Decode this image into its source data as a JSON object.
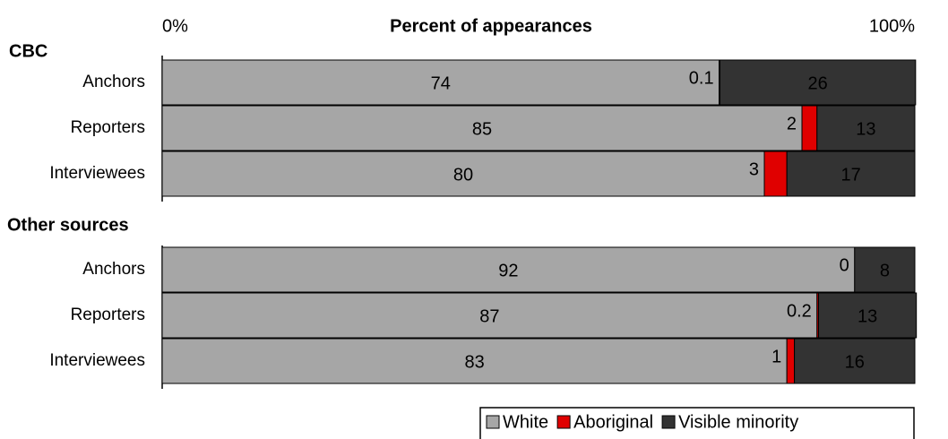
{
  "title": "Percent of  appearances",
  "xlim": [
    0,
    100
  ],
  "xticks": [
    {
      "value": 0,
      "label": "0%"
    },
    {
      "value": 100,
      "label": "100%"
    }
  ],
  "legend": [
    {
      "name": "White",
      "color": "#a6a6a6"
    },
    {
      "name": "Aboriginal",
      "color": "#e00000"
    },
    {
      "name": "Visible minority",
      "color": "#333333"
    }
  ],
  "chart_data": [
    {
      "type": "bar",
      "title": "CBC",
      "categories": [
        "Anchors",
        "Reporters",
        "Interviewees"
      ],
      "series": [
        {
          "values": [
            74,
            85,
            80
          ]
        },
        {
          "values": [
            0.1,
            2,
            3
          ]
        },
        {
          "values": [
            26,
            13,
            17
          ]
        }
      ]
    },
    {
      "type": "bar",
      "title": "Other sources",
      "categories": [
        "Anchors",
        "Reporters",
        "Interviewees"
      ],
      "series": [
        {
          "values": [
            92,
            87,
            83
          ]
        },
        {
          "values": [
            0,
            0.2,
            1
          ]
        },
        {
          "values": [
            8,
            13,
            16
          ]
        }
      ]
    }
  ]
}
